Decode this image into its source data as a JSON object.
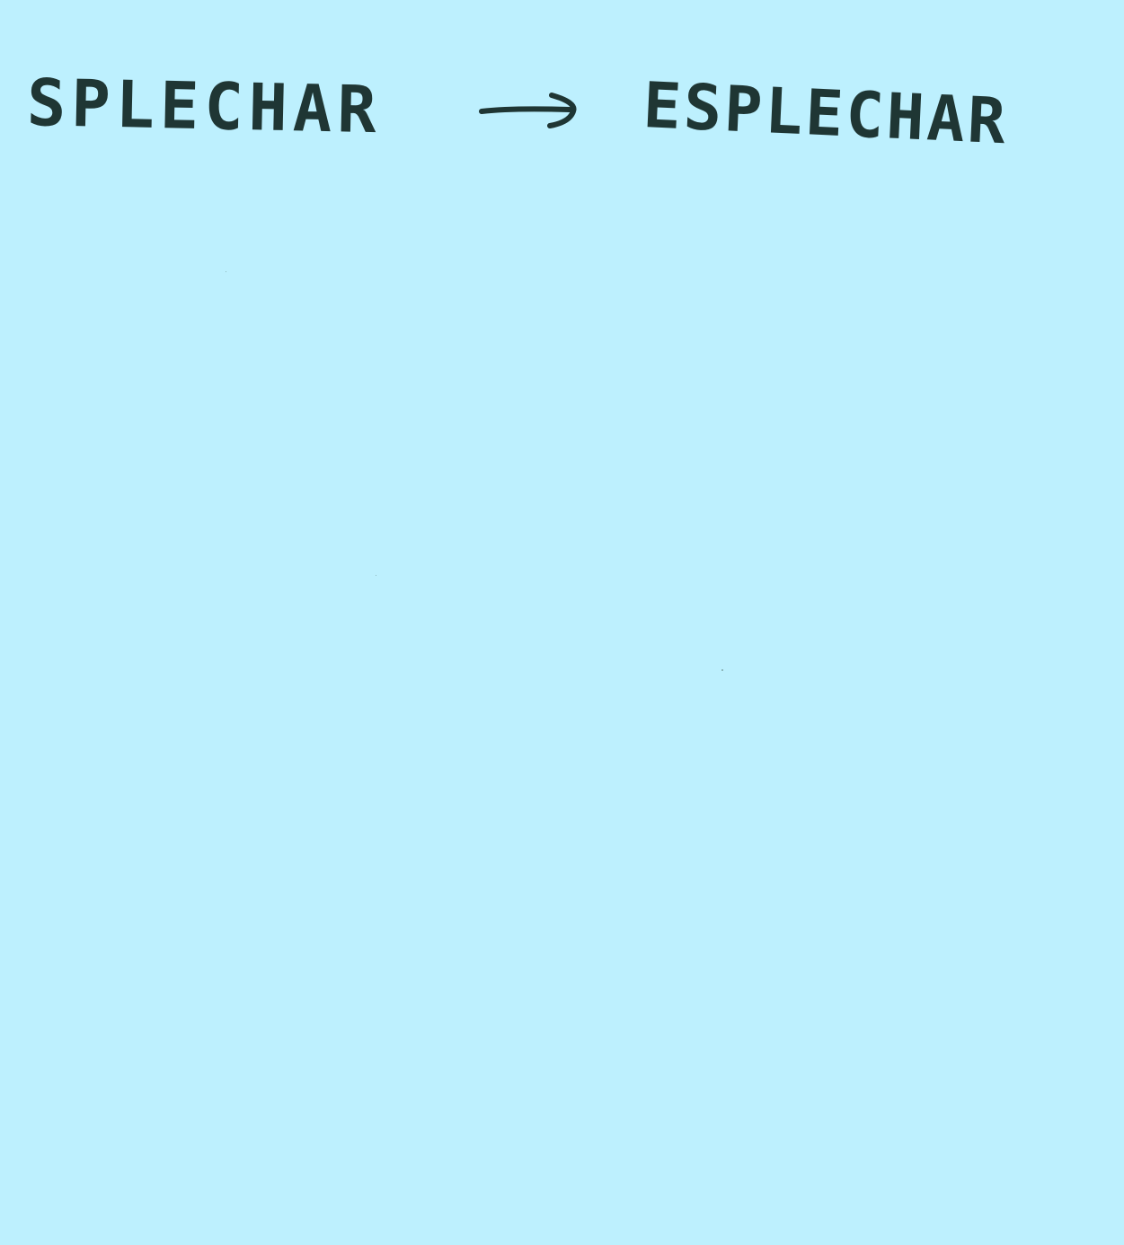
{
  "note": {
    "background_color": "#bdf0fe",
    "ink_color": "#1f3634",
    "source_word": "SPLECHAR",
    "target_word": "ESPLECHAR",
    "arrow_icon": "right-arrow-icon"
  }
}
